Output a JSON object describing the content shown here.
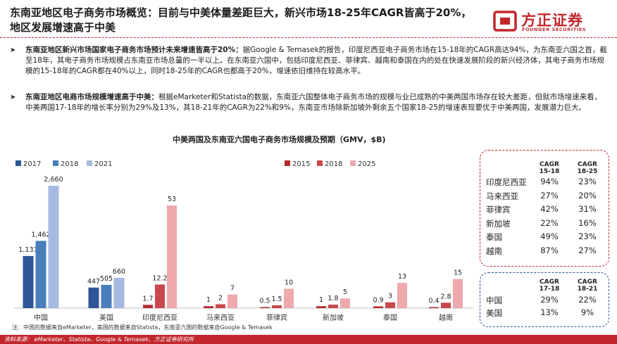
{
  "slide": {
    "title": "东南亚地区电子商务市场概览：目前与中美体量差距巨大，新兴市场18-25年CAGR皆高于20%，地区发展增速高于中美",
    "logo_cn": "方正证券",
    "logo_en": "FOUNDER SECURITIES"
  },
  "bullets": [
    {
      "arrow": "➤",
      "bold": "东南亚地区新兴市场国家电子商务市场预计未来增速皆高于20%：",
      "text": "据Google & Temasek的报告，印度尼西亚电子商务市场在15-18年的CAGR高达94%，为东南亚六国之首，截至18年，其电子商务市场规模占东南亚市场总量的一半以上。在东南亚六国中，包括印度尼西亚、菲律宾、越南和泰国在内的处在快速发展阶段的新兴经济体，其电子商务市场规模的15-18年的CAGR都在40%以上，同时18-25年的CAGR也都高于20%，增速依旧维持在较高水平。"
    },
    {
      "arrow": "➤",
      "bold": "东南亚地区电商市场规模增速高于中美：",
      "text": "根据eMarketer和Statista的数据，东南亚六国整体电子商务市场的规模与业已成熟的中美两国市场存在较大差距，但就市场增速来看，中美两国17-18年的增长率分别为29%及13%，其18-21年的CAGR为22%和9%，东南亚市场除新加坡外剩余五个国家18-25的增速表现要优于中美两国，发展潜力巨大。"
    }
  ],
  "chart_data": {
    "type": "bar",
    "title": "中美两国及东南亚六国电子商务市场规模及预期（GMV，$B)",
    "groups": [
      {
        "legend": [
          "2017",
          "2018",
          "2021"
        ],
        "colors": [
          "#2f5597",
          "#4a7ebb",
          "#a6b9e0"
        ],
        "categories": [
          {
            "name": "中国",
            "values": [
              1133,
              1462,
              2660
            ],
            "labels": [
              "1,133",
              "1,462",
              "2,660"
            ]
          },
          {
            "name": "美国",
            "values": [
              447,
              505,
              660
            ],
            "labels": [
              "447",
              "505",
              "660"
            ]
          }
        ]
      },
      {
        "legend": [
          "2015",
          "2018",
          "2025"
        ],
        "colors": [
          "#b22a2f",
          "#c8484d",
          "#eda9ac"
        ],
        "categories": [
          {
            "name": "印度尼西亚",
            "values": [
              1.7,
              12.2,
              53
            ],
            "labels": [
              "1.7",
              "12.2",
              "53"
            ]
          },
          {
            "name": "马来西亚",
            "values": [
              1,
              2,
              7
            ],
            "labels": [
              "1",
              "2",
              "7"
            ]
          },
          {
            "name": "菲律宾",
            "values": [
              0.5,
              1.5,
              10
            ],
            "labels": [
              "0.5",
              "1.5",
              "10"
            ]
          },
          {
            "name": "新加坡",
            "values": [
              1,
              1.8,
              5
            ],
            "labels": [
              "1",
              "1.8",
              "5"
            ]
          },
          {
            "name": "泰国",
            "values": [
              0.9,
              3,
              13
            ],
            "labels": [
              "0.9",
              "3",
              "13"
            ]
          },
          {
            "name": "越南",
            "values": [
              0.4,
              2.8,
              15
            ],
            "labels": [
              "0.4",
              "2.8",
              "15"
            ]
          }
        ]
      }
    ]
  },
  "cagr_sea": {
    "headers": [
      "CAGR 15-18",
      "CAGR 18-25"
    ],
    "rows": [
      {
        "country": "印度尼西亚",
        "a": "94%",
        "b": "23%"
      },
      {
        "country": "马来西亚",
        "a": "27%",
        "b": "20%"
      },
      {
        "country": "菲律宾",
        "a": "42%",
        "b": "31%"
      },
      {
        "country": "新加坡",
        "a": "22%",
        "b": "16%"
      },
      {
        "country": "泰国",
        "a": "49%",
        "b": "23%"
      },
      {
        "country": "越南",
        "a": "87%",
        "b": "27%"
      }
    ]
  },
  "cagr_cn_us": {
    "headers": [
      "CAGR 17-18",
      "CAGR 18-21"
    ],
    "rows": [
      {
        "country": "中国",
        "a": "29%",
        "b": "22%"
      },
      {
        "country": "美国",
        "a": "13%",
        "b": "9%"
      }
    ]
  },
  "note": "注：中国的数据来自eMarketer，美国的数据来自Statista，东南亚六国的数据来自Google & Temasek",
  "source": "资料来源：  eMarketer、Statista、Google & Temasek、方正证券研究所"
}
